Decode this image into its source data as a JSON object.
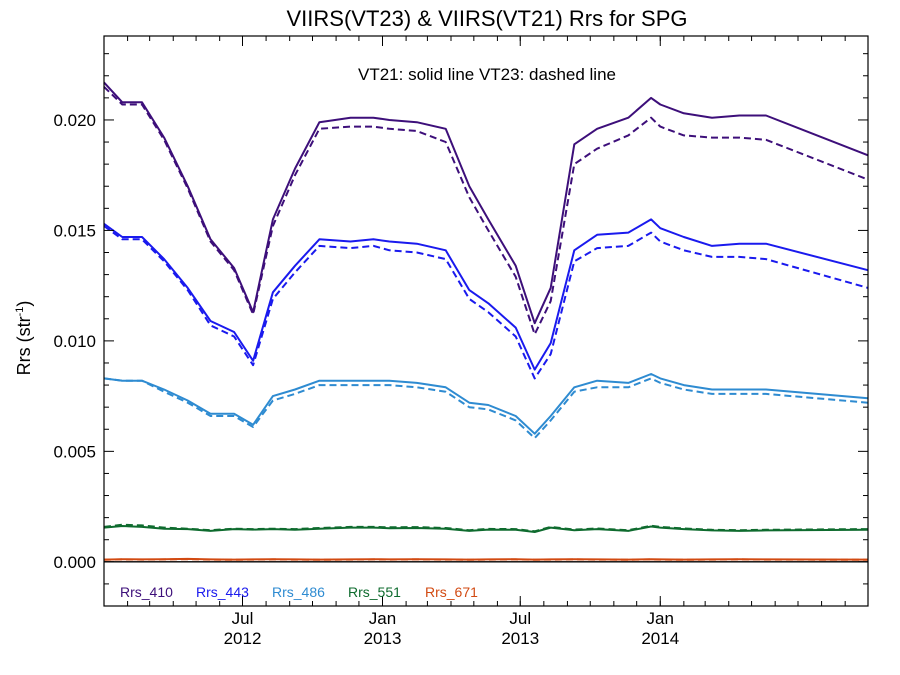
{
  "chart_data": {
    "type": "line",
    "title": "VIIRS(VT23) & VIIRS(VT21)  Rrs for SPG",
    "annotation": "VT21: solid line   VT23: dashed line",
    "ylabel_main": "Rrs (str",
    "ylabel_sup": "-1",
    "ylabel_close": ")",
    "xlim": [
      "2012-01-01",
      "2014-10-01"
    ],
    "ylim": [
      -0.002,
      0.0238
    ],
    "yticks": [
      {
        "value": 0.0,
        "label": "0.000"
      },
      {
        "value": 0.005,
        "label": "0.005"
      },
      {
        "value": 0.01,
        "label": "0.010"
      },
      {
        "value": 0.015,
        "label": "0.015"
      },
      {
        "value": 0.02,
        "label": "0.020"
      }
    ],
    "xticks": [
      {
        "date": "2012-07-01",
        "line1": "Jul",
        "line2": "2012"
      },
      {
        "date": "2013-01-01",
        "line1": "Jan",
        "line2": "2013"
      },
      {
        "date": "2013-07-01",
        "line1": "Jul",
        "line2": "2013"
      },
      {
        "date": "2014-01-01",
        "line1": "Jan",
        "line2": "2014"
      }
    ],
    "x": [
      "2012-01-01",
      "2012-01-25",
      "2012-02-20",
      "2012-03-20",
      "2012-04-20",
      "2012-05-20",
      "2012-06-20",
      "2012-07-15",
      "2012-08-10",
      "2012-09-08",
      "2012-10-10",
      "2012-11-20",
      "2012-12-20",
      "2013-01-10",
      "2013-02-15",
      "2013-03-25",
      "2013-04-25",
      "2013-05-20",
      "2013-06-25",
      "2013-07-20",
      "2013-08-10",
      "2013-09-10",
      "2013-10-10",
      "2013-11-20",
      "2013-12-20",
      "2014-01-01",
      "2014-02-01",
      "2014-03-10",
      "2014-04-15",
      "2014-05-20",
      "2014-10-01"
    ],
    "series": [
      {
        "name": "Rrs_410",
        "color": "#3d0f7a",
        "solid": [
          0.0217,
          0.0208,
          0.0208,
          0.0192,
          0.017,
          0.0146,
          0.0133,
          0.0113,
          0.0155,
          0.0178,
          0.0199,
          0.0201,
          0.0201,
          0.02,
          0.0199,
          0.0196,
          0.017,
          0.0155,
          0.0134,
          0.0108,
          0.0124,
          0.0189,
          0.0196,
          0.0201,
          0.021,
          0.0207,
          0.0203,
          0.0201,
          0.0202,
          0.0202,
          0.0184
        ],
        "dashed": [
          0.0215,
          0.0207,
          0.0207,
          0.0191,
          0.0169,
          0.0145,
          0.0132,
          0.0112,
          0.0152,
          0.0175,
          0.0196,
          0.0197,
          0.0197,
          0.0196,
          0.0195,
          0.019,
          0.0165,
          0.015,
          0.0129,
          0.0103,
          0.0118,
          0.018,
          0.0187,
          0.0193,
          0.0201,
          0.0197,
          0.0193,
          0.0192,
          0.0192,
          0.0191,
          0.0173
        ]
      },
      {
        "name": "Rrs_443",
        "color": "#1a1aee",
        "solid": [
          0.0153,
          0.0147,
          0.0147,
          0.0137,
          0.0124,
          0.0109,
          0.0104,
          0.0091,
          0.0122,
          0.0134,
          0.0146,
          0.0145,
          0.0146,
          0.0145,
          0.0144,
          0.0141,
          0.0123,
          0.0117,
          0.0106,
          0.0087,
          0.0099,
          0.0141,
          0.0148,
          0.0149,
          0.0155,
          0.0151,
          0.0147,
          0.0143,
          0.0144,
          0.0144,
          0.0132
        ],
        "dashed": [
          0.0152,
          0.0146,
          0.0146,
          0.0136,
          0.0123,
          0.0107,
          0.0102,
          0.0089,
          0.0119,
          0.0131,
          0.0143,
          0.0142,
          0.0143,
          0.0141,
          0.014,
          0.0137,
          0.0119,
          0.0113,
          0.0102,
          0.0083,
          0.0094,
          0.0136,
          0.0142,
          0.0143,
          0.0149,
          0.0145,
          0.0141,
          0.0138,
          0.0138,
          0.0137,
          0.0124
        ]
      },
      {
        "name": "Rrs_486",
        "color": "#2e8bd1",
        "solid": [
          0.0083,
          0.0082,
          0.0082,
          0.0078,
          0.0073,
          0.0067,
          0.0067,
          0.0062,
          0.0075,
          0.0078,
          0.0082,
          0.0082,
          0.0082,
          0.0082,
          0.0081,
          0.0079,
          0.0072,
          0.0071,
          0.0066,
          0.0058,
          0.0066,
          0.0079,
          0.0082,
          0.0081,
          0.0085,
          0.0083,
          0.008,
          0.0078,
          0.0078,
          0.0078,
          0.0074
        ],
        "dashed": [
          0.0083,
          0.0082,
          0.0082,
          0.0077,
          0.0072,
          0.0066,
          0.0066,
          0.0061,
          0.0073,
          0.0076,
          0.008,
          0.008,
          0.008,
          0.008,
          0.0079,
          0.0077,
          0.007,
          0.0069,
          0.0064,
          0.0056,
          0.0064,
          0.0077,
          0.0079,
          0.0079,
          0.0083,
          0.0081,
          0.0078,
          0.0076,
          0.0076,
          0.0076,
          0.0072
        ]
      },
      {
        "name": "Rrs_551",
        "color": "#0e6b2e",
        "solid": [
          0.00155,
          0.00162,
          0.00158,
          0.0015,
          0.00148,
          0.0014,
          0.00148,
          0.00146,
          0.00148,
          0.00145,
          0.0015,
          0.00155,
          0.00155,
          0.00152,
          0.00153,
          0.0015,
          0.0014,
          0.00146,
          0.00145,
          0.00135,
          0.00155,
          0.00143,
          0.00148,
          0.0014,
          0.0016,
          0.00155,
          0.00148,
          0.00142,
          0.0014,
          0.00142,
          0.00145
        ],
        "dashed": [
          0.00158,
          0.00168,
          0.00165,
          0.00155,
          0.0015,
          0.00143,
          0.0015,
          0.00148,
          0.0015,
          0.00148,
          0.00153,
          0.00158,
          0.00158,
          0.00156,
          0.00157,
          0.00153,
          0.00143,
          0.00149,
          0.00148,
          0.00138,
          0.00158,
          0.00146,
          0.00151,
          0.00143,
          0.00163,
          0.00158,
          0.00151,
          0.00145,
          0.00143,
          0.00145,
          0.00148
        ]
      },
      {
        "name": "Rrs_671",
        "color": "#d24a12",
        "solid": [
          0.0001,
          0.00012,
          0.00011,
          0.00012,
          0.00013,
          0.00011,
          0.0001,
          0.00011,
          0.00012,
          0.00011,
          0.0001,
          0.00011,
          0.00012,
          0.00011,
          0.00012,
          0.00011,
          0.0001,
          0.00011,
          0.00012,
          0.0001,
          0.00011,
          0.00012,
          0.00011,
          0.0001,
          0.00012,
          0.00011,
          0.0001,
          0.00011,
          0.00012,
          0.00011,
          0.0001
        ],
        "dashed": [
          9e-05,
          0.00011,
          0.0001,
          0.00011,
          0.00012,
          0.0001,
          9e-05,
          0.0001,
          0.00011,
          0.0001,
          9e-05,
          0.0001,
          0.00011,
          0.0001,
          0.00011,
          0.0001,
          9e-05,
          0.0001,
          0.00011,
          9e-05,
          0.0001,
          0.00011,
          0.0001,
          9e-05,
          0.00011,
          0.0001,
          9e-05,
          0.0001,
          0.00011,
          0.0001,
          9e-05
        ]
      }
    ],
    "zero_line": true,
    "legend_position": "bottom-left",
    "grid": false
  }
}
